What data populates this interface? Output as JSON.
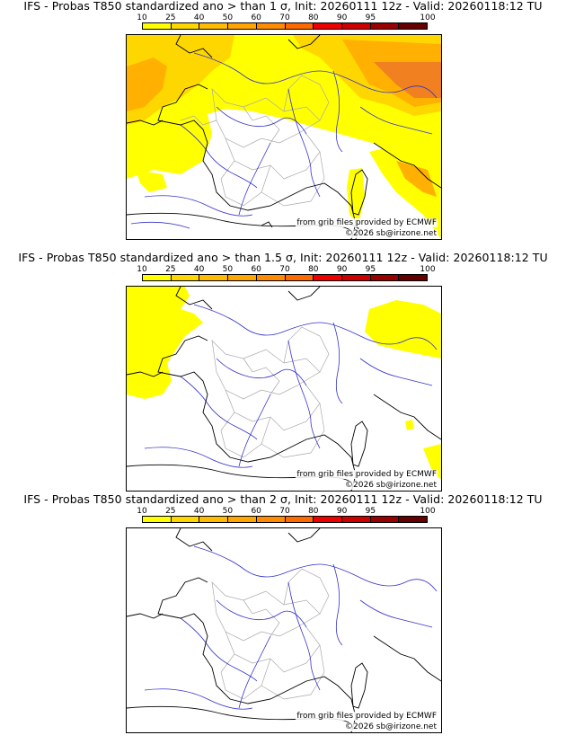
{
  "colorbar": {
    "labels": [
      "10",
      "25",
      "40",
      "50",
      "60",
      "70",
      "80",
      "90",
      "95",
      "100"
    ],
    "colors": [
      "#ffff00",
      "#ffd700",
      "#ffbb00",
      "#ffa500",
      "#ff8c00",
      "#ff6a00",
      "#ee0000",
      "#cc0000",
      "#990000",
      "#660000"
    ]
  },
  "panels": [
    {
      "title": "IFS - Probas T850  standardized ano > than 1 σ, Init: 20260111 12z - Valid: 20260118:12 TU",
      "credit_line1": "from grib files provided by ECMWF",
      "credit_line2": "©2026 sb@irizone.net"
    },
    {
      "title": "IFS - Probas T850  standardized ano > than 1.5 σ, Init: 20260111 12z - Valid: 20260118:12 TU",
      "credit_line1": "from grib files provided by ECMWF",
      "credit_line2": "©2026 sb@irizone.net"
    },
    {
      "title": "IFS - Probas T850  standardized ano > than 2 σ, Init: 20260111 12z - Valid: 20260118:12 TU",
      "credit_line1": "from grib files provided by ECMWF",
      "credit_line2": "©2026 sb@irizone.net"
    }
  ],
  "map_colors": {
    "coast": "#000000",
    "rivers": "#3333cc",
    "borders": "#aaaaaa",
    "fill_low": "#ffff00",
    "fill_mid": "#ffd700",
    "fill_high": "#ffa500",
    "fill_top": "#f08020"
  }
}
